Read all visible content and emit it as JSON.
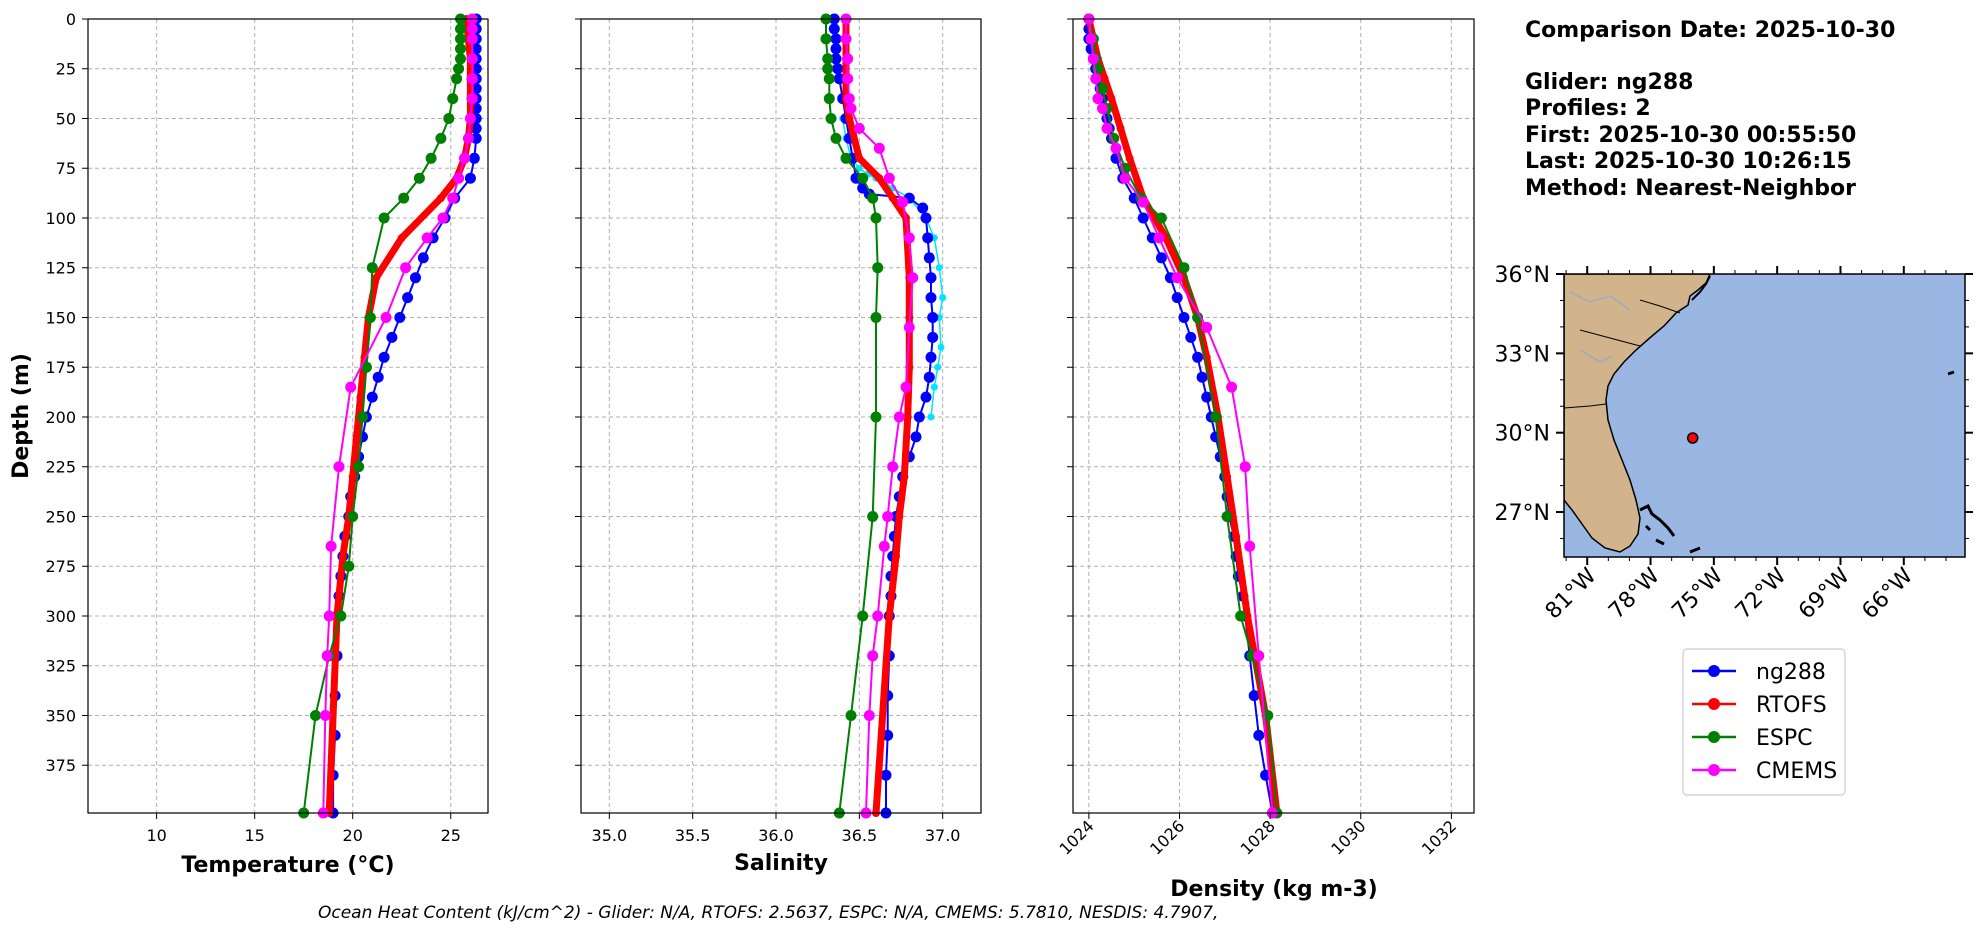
{
  "info": {
    "comparison_date": "Comparison Date: 2025-10-30",
    "glider": "Glider: ng288",
    "profiles": "Profiles: 2",
    "first": "First: 2025-10-30 00:55:50",
    "last": "Last: 2025-10-30 10:26:15",
    "method": "Method: Nearest-Neighbor"
  },
  "footer": "Ocean Heat Content (kJ/cm^2) - Glider: N/A,  RTOFS: 2.5637,  ESPC: N/A,  CMEMS: 5.7810,  NESDIS: 4.7907,",
  "colors": {
    "ng288": "#0000ff",
    "ng288_alt": "#00e5ff",
    "RTOFS": "#ff0000",
    "ESPC": "#008000",
    "CMEMS": "#ff00ff",
    "land": "#d2b48c",
    "ocean": "#9ab7e3"
  },
  "legend": [
    {
      "name": "ng288",
      "color": "#0000ff"
    },
    {
      "name": "RTOFS",
      "color": "#ff0000"
    },
    {
      "name": "ESPC",
      "color": "#008000"
    },
    {
      "name": "CMEMS",
      "color": "#ff00ff"
    }
  ],
  "chart_data": [
    {
      "type": "line",
      "id": "temperature",
      "xlabel": "Temperature (°C)",
      "ylabel": "Depth (m)",
      "xlim": [
        6.5,
        26.9
      ],
      "ylim": [
        399,
        0
      ],
      "xticks": [
        10,
        15,
        20,
        25
      ],
      "yticks": [
        0,
        25,
        50,
        75,
        100,
        125,
        150,
        175,
        200,
        225,
        250,
        275,
        300,
        325,
        350,
        375
      ],
      "grid": true,
      "series": [
        {
          "name": "ng288",
          "x": [
            26.3,
            26.3,
            26.3,
            26.3,
            26.3,
            26.3,
            26.3,
            26.3,
            26.3,
            26.3,
            26.3,
            26.3,
            26.3,
            26.2,
            26.0,
            25.2,
            24.7,
            24.1,
            23.6,
            23.2,
            22.8,
            22.4,
            22.0,
            21.6,
            21.3,
            21.0,
            20.7,
            20.5,
            20.3,
            20.1,
            19.9,
            19.8,
            19.6,
            19.5,
            19.4,
            19.3,
            19.2,
            19.2,
            19.1,
            19.1,
            19.0,
            19.0
          ],
          "y": [
            0,
            5,
            10,
            15,
            20,
            25,
            30,
            35,
            40,
            45,
            50,
            55,
            60,
            70,
            80,
            90,
            100,
            110,
            120,
            130,
            140,
            150,
            160,
            170,
            180,
            190,
            200,
            210,
            220,
            230,
            240,
            250,
            260,
            270,
            280,
            290,
            300,
            320,
            340,
            360,
            380,
            399
          ]
        },
        {
          "name": "RTOFS",
          "x": [
            25.8,
            25.9,
            26.0,
            26.0,
            26.0,
            26.0,
            25.9,
            25.7,
            25.3,
            24.5,
            22.5,
            21.2,
            20.8,
            20.6,
            20.4,
            20.2,
            20.0,
            19.8,
            19.5,
            19.2,
            18.8
          ],
          "y": [
            0,
            10,
            20,
            30,
            40,
            50,
            60,
            70,
            80,
            90,
            110,
            130,
            150,
            170,
            190,
            210,
            230,
            250,
            270,
            300,
            399
          ]
        },
        {
          "name": "ESPC",
          "x": [
            25.5,
            25.5,
            25.5,
            25.5,
            25.5,
            25.4,
            25.3,
            25.1,
            24.9,
            24.5,
            24.0,
            23.4,
            22.6,
            21.6,
            21.0,
            20.9,
            20.7,
            20.5,
            20.3,
            20.0,
            19.8,
            19.4,
            18.8,
            18.1,
            17.5
          ],
          "y": [
            0,
            5,
            10,
            15,
            20,
            25,
            30,
            40,
            50,
            60,
            70,
            80,
            90,
            100,
            125,
            150,
            175,
            200,
            225,
            250,
            275,
            300,
            320,
            350,
            399
          ]
        },
        {
          "name": "CMEMS",
          "x": [
            26.1,
            26.1,
            26.1,
            26.1,
            26.1,
            26.1,
            26.0,
            25.9,
            25.7,
            25.4,
            25.1,
            24.6,
            23.8,
            22.7,
            21.7,
            19.9,
            19.3,
            18.9,
            18.8,
            18.7,
            18.6,
            18.5
          ],
          "y": [
            0,
            5,
            10,
            20,
            30,
            40,
            50,
            60,
            70,
            80,
            90,
            100,
            110,
            125,
            150,
            185,
            225,
            265,
            300,
            320,
            350,
            399
          ]
        }
      ]
    },
    {
      "type": "line",
      "id": "salinity",
      "xlabel": "Salinity",
      "ylabel": "",
      "xlim": [
        34.83,
        37.23
      ],
      "ylim": [
        399,
        0
      ],
      "xticks": [
        35.0,
        35.5,
        36.0,
        36.5,
        37.0
      ],
      "grid": true,
      "series": [
        {
          "name": "ng288",
          "x": [
            36.35,
            36.35,
            36.36,
            36.36,
            36.36,
            36.37,
            36.38,
            36.4,
            36.42,
            36.44,
            36.46,
            36.48,
            36.52,
            36.56,
            36.8,
            36.88,
            36.9,
            36.91,
            36.92,
            36.93,
            36.93,
            36.94,
            36.94,
            36.93,
            36.92,
            36.9,
            36.86,
            36.84,
            36.8,
            36.76,
            36.74,
            36.72,
            36.71,
            36.7,
            36.69,
            36.69,
            36.68,
            36.68,
            36.67,
            36.67,
            36.66,
            36.66
          ],
          "y": [
            0,
            5,
            10,
            15,
            20,
            25,
            30,
            40,
            50,
            60,
            70,
            80,
            85,
            88,
            90,
            95,
            100,
            110,
            120,
            130,
            140,
            150,
            160,
            170,
            180,
            190,
            200,
            210,
            220,
            230,
            240,
            250,
            260,
            270,
            280,
            290,
            300,
            320,
            340,
            360,
            380,
            399
          ]
        },
        {
          "name": "ng288_alt",
          "x": [
            36.4,
            36.42,
            36.45,
            36.5,
            36.55,
            36.6,
            36.65,
            36.7,
            36.8,
            36.9,
            36.95,
            36.98,
            37.0,
            36.98,
            36.99,
            36.97,
            36.95,
            36.93
          ],
          "y": [
            50,
            60,
            70,
            75,
            78,
            80,
            82,
            85,
            90,
            100,
            110,
            125,
            140,
            150,
            165,
            175,
            185,
            200
          ]
        },
        {
          "name": "RTOFS",
          "x": [
            36.42,
            36.42,
            36.42,
            36.42,
            36.42,
            36.44,
            36.5,
            36.62,
            36.7,
            36.78,
            36.8,
            36.8,
            36.8,
            36.79,
            36.77,
            36.74,
            36.72,
            36.68,
            36.6
          ],
          "y": [
            0,
            10,
            20,
            30,
            40,
            50,
            70,
            80,
            90,
            100,
            130,
            150,
            175,
            200,
            230,
            250,
            270,
            300,
            399
          ]
        },
        {
          "name": "ESPC",
          "x": [
            36.3,
            36.3,
            36.31,
            36.31,
            36.32,
            36.32,
            36.33,
            36.36,
            36.42,
            36.52,
            36.58,
            36.6,
            36.61,
            36.6,
            36.6,
            36.58,
            36.52,
            36.45,
            36.38
          ],
          "y": [
            0,
            10,
            20,
            25,
            30,
            40,
            50,
            60,
            70,
            80,
            90,
            100,
            125,
            150,
            200,
            250,
            300,
            350,
            399
          ]
        },
        {
          "name": "CMEMS",
          "x": [
            36.42,
            36.42,
            36.43,
            36.43,
            36.44,
            36.45,
            36.5,
            36.62,
            36.68,
            36.76,
            36.8,
            36.82,
            36.8,
            36.78,
            36.74,
            36.7,
            36.67,
            36.65,
            36.61,
            36.58,
            36.56,
            36.54
          ],
          "y": [
            0,
            10,
            20,
            30,
            40,
            45,
            55,
            65,
            80,
            92,
            110,
            130,
            155,
            185,
            200,
            225,
            250,
            265,
            300,
            320,
            350,
            399
          ]
        }
      ]
    },
    {
      "type": "line",
      "id": "density",
      "xlabel": "Density (kg m-3)",
      "ylabel": "",
      "xlim": [
        1023.65,
        1032.5
      ],
      "ylim": [
        399,
        0
      ],
      "xticks": [
        1024,
        1026,
        1028,
        1030,
        1032
      ],
      "grid": true,
      "series": [
        {
          "name": "ng288",
          "x": [
            1024.0,
            1024.0,
            1024.0,
            1024.05,
            1024.1,
            1024.15,
            1024.2,
            1024.25,
            1024.3,
            1024.35,
            1024.4,
            1024.45,
            1024.5,
            1024.6,
            1024.75,
            1025.0,
            1025.2,
            1025.4,
            1025.6,
            1025.8,
            1025.95,
            1026.1,
            1026.25,
            1026.4,
            1026.5,
            1026.6,
            1026.7,
            1026.8,
            1026.9,
            1027.0,
            1027.05,
            1027.1,
            1027.2,
            1027.25,
            1027.3,
            1027.4,
            1027.45,
            1027.55,
            1027.65,
            1027.75,
            1027.9,
            1028.05
          ],
          "y": [
            0,
            5,
            10,
            15,
            20,
            25,
            30,
            35,
            40,
            45,
            50,
            55,
            60,
            70,
            80,
            90,
            100,
            110,
            120,
            130,
            140,
            150,
            160,
            170,
            180,
            190,
            200,
            210,
            220,
            230,
            240,
            250,
            260,
            270,
            280,
            290,
            300,
            320,
            340,
            360,
            380,
            399
          ]
        },
        {
          "name": "RTOFS",
          "x": [
            1024.0,
            1024.1,
            1024.2,
            1024.35,
            1024.5,
            1024.7,
            1024.9,
            1025.2,
            1025.7,
            1026.1,
            1026.4,
            1026.6,
            1026.85,
            1027.05,
            1027.25,
            1027.5,
            1027.9,
            1028.15
          ],
          "y": [
            0,
            10,
            20,
            30,
            40,
            55,
            70,
            90,
            110,
            130,
            150,
            170,
            200,
            230,
            260,
            300,
            350,
            399
          ]
        },
        {
          "name": "ESPC",
          "x": [
            1024.0,
            1024.1,
            1024.15,
            1024.2,
            1024.3,
            1024.4,
            1024.55,
            1024.8,
            1025.15,
            1025.6,
            1026.1,
            1026.4,
            1026.8,
            1027.05,
            1027.35,
            1027.6,
            1027.95,
            1028.15
          ],
          "y": [
            0,
            10,
            20,
            25,
            35,
            45,
            60,
            75,
            90,
            100,
            125,
            150,
            200,
            250,
            300,
            320,
            350,
            399
          ]
        },
        {
          "name": "CMEMS",
          "x": [
            1024.0,
            1024.05,
            1024.1,
            1024.15,
            1024.2,
            1024.3,
            1024.4,
            1024.6,
            1024.8,
            1025.2,
            1025.55,
            1025.95,
            1026.6,
            1027.15,
            1027.45,
            1027.55,
            1027.75,
            1028.05
          ],
          "y": [
            0,
            10,
            20,
            30,
            40,
            45,
            55,
            65,
            80,
            92,
            110,
            130,
            155,
            185,
            225,
            265,
            320,
            399
          ]
        }
      ]
    }
  ],
  "map": {
    "lat_ticks": [
      "36°N",
      "33°N",
      "30°N",
      "27°N"
    ],
    "lat_values": [
      36,
      33,
      30,
      27
    ],
    "lon_ticks": [
      "81°W",
      "78°W",
      "75°W",
      "72°W",
      "69°W",
      "66°W"
    ],
    "lon_values": [
      -81,
      -78,
      -75,
      -72,
      -69,
      -66
    ],
    "lat_range": [
      25.3,
      36.0
    ],
    "lon_range": [
      -82.1,
      -63.1
    ],
    "glider_position": {
      "lat": 29.8,
      "lon": -76.0
    }
  }
}
